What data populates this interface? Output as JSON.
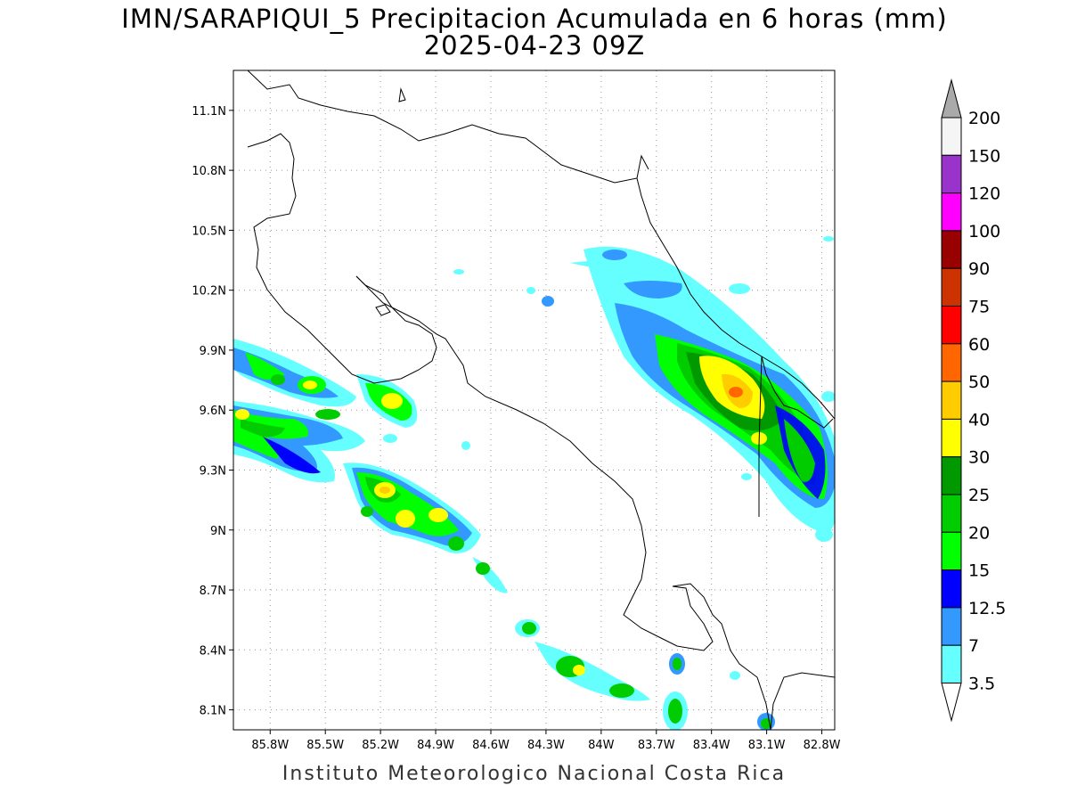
{
  "title": "IMN/SARAPIQUI_5 Precipitacion Acumulada en 6 horas (mm)",
  "subtitle": "2025-04-23 09Z",
  "footer": "Instituto Meteorologico Nacional Costa Rica",
  "lat_ticks": [
    "11.1N",
    "10.8N",
    "10.5N",
    "10.2N",
    "9.9N",
    "9.6N",
    "9.3N",
    "9N",
    "8.7N",
    "8.4N",
    "8.1N"
  ],
  "lat_values": [
    11.1,
    10.8,
    10.5,
    10.2,
    9.9,
    9.6,
    9.3,
    9.0,
    8.7,
    8.4,
    8.1
  ],
  "lon_ticks": [
    "85.8W",
    "85.5W",
    "85.2W",
    "84.9W",
    "84.6W",
    "84.3W",
    "84W",
    "83.7W",
    "83.4W",
    "83.1W",
    "82.8W"
  ],
  "lon_values": [
    -85.8,
    -85.5,
    -85.2,
    -84.9,
    -84.6,
    -84.3,
    -84.0,
    -83.7,
    -83.4,
    -83.1,
    -82.8
  ],
  "colorbar": {
    "labels": [
      "200",
      "150",
      "120",
      "100",
      "90",
      "75",
      "60",
      "50",
      "40",
      "30",
      "25",
      "20",
      "15",
      "12.5",
      "7",
      "3.5"
    ],
    "colors": [
      "#f5f5f5",
      "#9933cc",
      "#ff00ff",
      "#990000",
      "#cc3300",
      "#ff0000",
      "#ff6600",
      "#ffcc00",
      "#ffff00",
      "#009900",
      "#00cc00",
      "#00ff00",
      "#0000ff",
      "#3399ff",
      "#66ffff"
    ],
    "over_color": "#aaaaaa",
    "under_color": "#ffffff"
  },
  "colors": {
    "light_blue": "#66ffff",
    "mid_blue": "#3399ff",
    "blue": "#0000ff",
    "green": "#00ff00",
    "mid_green": "#00cc00",
    "dark_green": "#009900",
    "yellow": "#ffff00",
    "orange": "#ffcc00",
    "red_orange": "#ff6600"
  }
}
